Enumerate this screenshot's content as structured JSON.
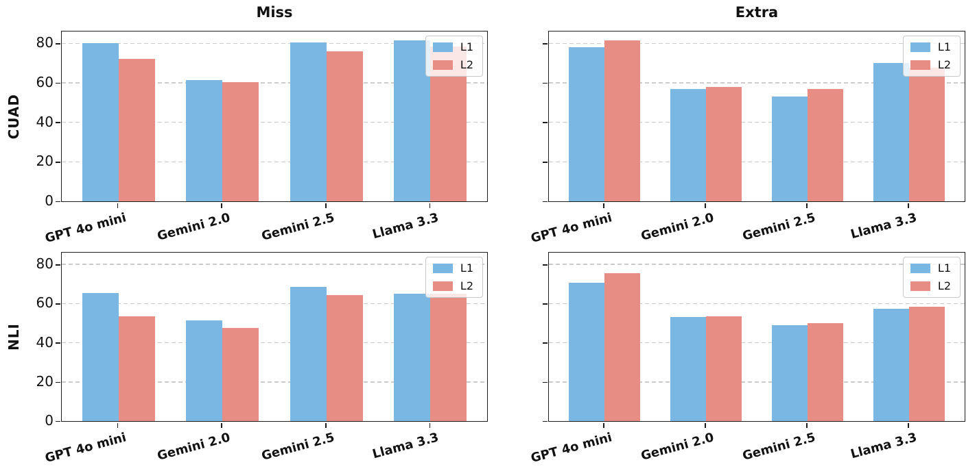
{
  "figure": {
    "rows": [
      {
        "label": "CUAD"
      },
      {
        "label": "NLI"
      }
    ],
    "cols": [
      {
        "title": "Miss"
      },
      {
        "title": "Extra"
      }
    ]
  },
  "colors": {
    "l1": "#7ab7e3",
    "l2": "#e88d83",
    "grid": "#cbcbcb",
    "axis": "#1c1c1c"
  },
  "chart_data": [
    {
      "type": "bar",
      "subplot": "top-left",
      "title": "Miss",
      "row_label": "CUAD",
      "categories": [
        "GPT 4o mini",
        "Gemini 2.0",
        "Gemini 2.5",
        "Llama 3.3"
      ],
      "series": [
        {
          "name": "L1",
          "color": "#7ab7e3",
          "values": [
            80,
            61.5,
            80.5,
            81.5
          ]
        },
        {
          "name": "L2",
          "color": "#e88d83",
          "values": [
            72,
            60.5,
            76,
            78.5
          ]
        }
      ],
      "ylim": [
        0,
        86
      ],
      "yticks": [
        0,
        20,
        40,
        60,
        80
      ],
      "show_ytick_labels": true,
      "grid": {
        "axis": "y",
        "style": "dashed"
      },
      "legend": {
        "position": "upper right",
        "items": [
          {
            "label": "L1",
            "color": "#7ab7e3"
          },
          {
            "label": "L2",
            "color": "#e88d83"
          }
        ]
      },
      "x_margin": 0.545,
      "bar_width": 0.35
    },
    {
      "type": "bar",
      "subplot": "top-right",
      "title": "Extra",
      "row_label": "",
      "categories": [
        "GPT 4o mini",
        "Gemini 2.0",
        "Gemini 2.5",
        "Llama 3.3"
      ],
      "series": [
        {
          "name": "L1",
          "color": "#7ab7e3",
          "values": [
            78,
            57,
            53,
            70
          ]
        },
        {
          "name": "L2",
          "color": "#e88d83",
          "values": [
            81.5,
            58,
            57,
            67.5
          ]
        }
      ],
      "ylim": [
        0,
        86
      ],
      "yticks": [
        0,
        20,
        40,
        60,
        80
      ],
      "show_ytick_labels": false,
      "grid": {
        "axis": "y",
        "style": "dashed"
      },
      "legend": {
        "position": "upper right",
        "items": [
          {
            "label": "L1",
            "color": "#7ab7e3"
          },
          {
            "label": "L2",
            "color": "#e88d83"
          }
        ]
      },
      "x_margin": 0.545,
      "bar_width": 0.35
    },
    {
      "type": "bar",
      "subplot": "bottom-left",
      "title": "",
      "row_label": "NLI",
      "categories": [
        "GPT 4o mini",
        "Gemini 2.0",
        "Gemini 2.5",
        "Llama 3.3"
      ],
      "series": [
        {
          "name": "L1",
          "color": "#7ab7e3",
          "values": [
            65.5,
            51.5,
            68.5,
            65
          ]
        },
        {
          "name": "L2",
          "color": "#e88d83",
          "values": [
            53.5,
            47.5,
            64.5,
            65
          ]
        }
      ],
      "ylim": [
        0,
        86
      ],
      "yticks": [
        0,
        20,
        40,
        60,
        80
      ],
      "show_ytick_labels": true,
      "grid": {
        "axis": "y",
        "style": "dashed"
      },
      "legend": {
        "position": "upper right",
        "items": [
          {
            "label": "L1",
            "color": "#7ab7e3"
          },
          {
            "label": "L2",
            "color": "#e88d83"
          }
        ]
      },
      "x_margin": 0.545,
      "bar_width": 0.35
    },
    {
      "type": "bar",
      "subplot": "bottom-right",
      "title": "",
      "row_label": "",
      "categories": [
        "GPT 4o mini",
        "Gemini 2.0",
        "Gemini 2.5",
        "Llama 3.3"
      ],
      "series": [
        {
          "name": "L1",
          "color": "#7ab7e3",
          "values": [
            70.5,
            53,
            49,
            57.5
          ]
        },
        {
          "name": "L2",
          "color": "#e88d83",
          "values": [
            75.5,
            53.5,
            50,
            58.5
          ]
        }
      ],
      "ylim": [
        0,
        86
      ],
      "yticks": [
        0,
        20,
        40,
        60,
        80
      ],
      "show_ytick_labels": false,
      "grid": {
        "axis": "y",
        "style": "dashed"
      },
      "legend": {
        "position": "upper right",
        "items": [
          {
            "label": "L1",
            "color": "#7ab7e3"
          },
          {
            "label": "L2",
            "color": "#e88d83"
          }
        ]
      },
      "x_margin": 0.545,
      "bar_width": 0.35
    }
  ]
}
